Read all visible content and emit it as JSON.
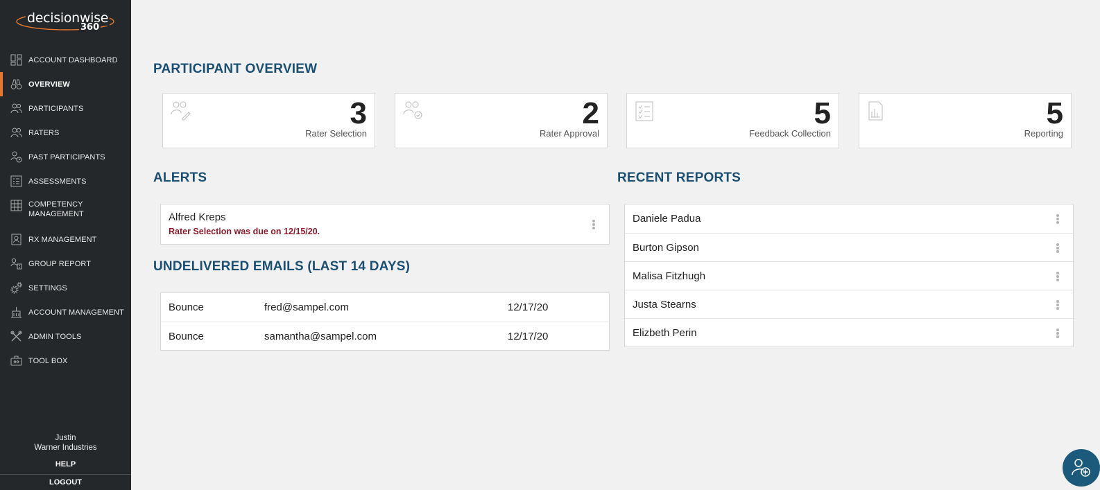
{
  "brand": {
    "word": "decisionwise",
    "number": "360"
  },
  "sidebar": {
    "items": [
      {
        "label": "ACCOUNT DASHBOARD",
        "icon": "dashboard-icon"
      },
      {
        "label": "OVERVIEW",
        "icon": "binoculars-icon",
        "active": true
      },
      {
        "label": "PARTICIPANTS",
        "icon": "users-icon"
      },
      {
        "label": "RATERS",
        "icon": "users-icon"
      },
      {
        "label": "PAST PARTICIPANTS",
        "icon": "users-history-icon"
      },
      {
        "label": "ASSESSMENTS",
        "icon": "list-icon"
      },
      {
        "label": "COMPETENCY MANAGEMENT",
        "icon": "grid-icon"
      },
      {
        "label": "RX MANAGEMENT",
        "icon": "badge-icon"
      },
      {
        "label": "GROUP REPORT",
        "icon": "group-report-icon"
      },
      {
        "label": "SETTINGS",
        "icon": "gear-icon"
      },
      {
        "label": "ACCOUNT MANAGEMENT",
        "icon": "building-icon"
      },
      {
        "label": "ADMIN TOOLS",
        "icon": "tools-icon"
      },
      {
        "label": "TOOL BOX",
        "icon": "toolbox-icon"
      }
    ],
    "user_name": "Justin",
    "company": "Warner Industries",
    "help": "HELP",
    "logout": "LOGOUT"
  },
  "overview": {
    "title": "PARTICIPANT OVERVIEW",
    "cards": [
      {
        "value": "3",
        "label": "Rater Selection",
        "icon": "rater-selection-icon"
      },
      {
        "value": "2",
        "label": "Rater Approval",
        "icon": "rater-approval-icon"
      },
      {
        "value": "5",
        "label": "Feedback Collection",
        "icon": "checklist-icon"
      },
      {
        "value": "5",
        "label": "Reporting",
        "icon": "report-chart-icon"
      }
    ]
  },
  "alerts": {
    "title": "ALERTS",
    "items": [
      {
        "name": "Alfred Kreps",
        "message": "Rater Selection was due on 12/15/20."
      }
    ]
  },
  "emails": {
    "title": "UNDELIVERED EMAILS (LAST 14 DAYS)",
    "rows": [
      {
        "type": "Bounce",
        "email": "fred@sampel.com",
        "date": "12/17/20"
      },
      {
        "type": "Bounce",
        "email": "samantha@sampel.com",
        "date": "12/17/20"
      }
    ]
  },
  "reports": {
    "title": "RECENT REPORTS",
    "rows": [
      "Daniele Padua",
      "Burton Gipson",
      "Malisa Fitzhugh",
      "Justa Stearns",
      "Elizbeth Perin"
    ]
  },
  "colors": {
    "sidebar": "#25282b",
    "accent": "#e8772e",
    "heading": "#1b4f72",
    "alert": "#8b1a2b",
    "fab": "#1b5a7a"
  }
}
